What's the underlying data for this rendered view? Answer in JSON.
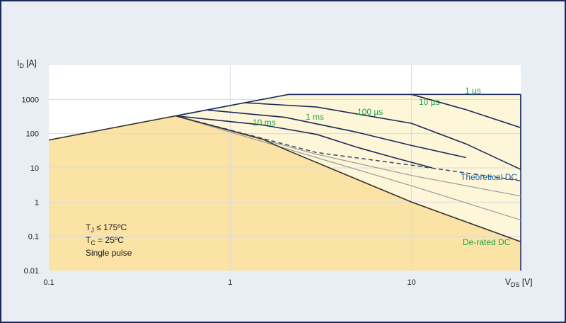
{
  "chart_data": {
    "type": "line",
    "title": "",
    "xlabel": {
      "main": "V",
      "sub": "DS",
      "unit": " [V]"
    },
    "ylabel": {
      "main": "I",
      "sub": "D",
      "unit": " [A]"
    },
    "x_scale": "log",
    "y_scale": "log",
    "xlim": [
      0.1,
      40
    ],
    "ylim": [
      0.01,
      10000
    ],
    "x_ticks": [
      0.1,
      1,
      10
    ],
    "y_ticks": [
      0.01,
      0.1,
      1,
      10,
      100,
      1000
    ],
    "x_tick_labels": [
      "0.1",
      "1",
      "10"
    ],
    "y_tick_labels": [
      "0.01",
      "0.1",
      "1",
      "10",
      "100",
      "1000"
    ],
    "grid": true,
    "series": [
      {
        "name": "1 µs",
        "label": "1 µs",
        "style": "solid",
        "color": "#1b2a5a",
        "points": [
          [
            0.5,
            330
          ],
          [
            2.1,
            1400
          ],
          [
            40,
            1400
          ],
          [
            40,
            9
          ]
        ]
      },
      {
        "name": "10 µs",
        "label": "10 µs",
        "style": "solid",
        "color": "#1b2a5a",
        "points": [
          [
            2.1,
            1400
          ],
          [
            10,
            1400
          ],
          [
            20,
            500
          ],
          [
            40,
            150
          ]
        ]
      },
      {
        "name": "100 µs",
        "label": "100 µs",
        "style": "solid",
        "color": "#1b2a5a",
        "points": [
          [
            1.2,
            800
          ],
          [
            3,
            600
          ],
          [
            10,
            200
          ],
          [
            20,
            50
          ],
          [
            40,
            9
          ]
        ]
      },
      {
        "name": "1 ms",
        "label": "1 ms",
        "style": "solid",
        "color": "#1b2a5a",
        "points": [
          [
            0.75,
            490
          ],
          [
            2,
            300
          ],
          [
            5,
            110
          ],
          [
            10,
            45
          ],
          [
            20,
            20
          ]
        ]
      },
      {
        "name": "10 ms",
        "label": "10 ms",
        "style": "solid",
        "color": "#1b2a5a",
        "points": [
          [
            0.5,
            330
          ],
          [
            1.5,
            180
          ],
          [
            3,
            95
          ],
          [
            5,
            40
          ],
          [
            8,
            20
          ],
          [
            13,
            10
          ]
        ]
      },
      {
        "name": "Theoretical DC",
        "label": "Theoretical DC",
        "style": "dashed",
        "color": "#44506e",
        "points": [
          [
            0.5,
            330
          ],
          [
            3,
            28
          ],
          [
            10,
            12
          ],
          [
            40,
            4.2
          ]
        ]
      },
      {
        "name": "gray-1",
        "style": "solid",
        "color": "#9a9a9a",
        "points": [
          [
            0.5,
            330
          ],
          [
            3,
            25
          ],
          [
            10,
            6
          ],
          [
            40,
            1.5
          ]
        ]
      },
      {
        "name": "gray-2",
        "style": "solid",
        "color": "#9a9a9a",
        "points": [
          [
            0.5,
            330
          ],
          [
            3,
            20
          ],
          [
            10,
            3
          ],
          [
            40,
            0.3
          ]
        ]
      },
      {
        "name": "De-rated DC",
        "label": "De-rated DC",
        "style": "solid",
        "color": "#333333",
        "points": [
          [
            0.1,
            65
          ],
          [
            0.5,
            330
          ],
          [
            1.5,
            70
          ],
          [
            2,
            35
          ],
          [
            10,
            1
          ],
          [
            40,
            0.07
          ]
        ]
      }
    ],
    "annotations": {
      "conditions": [
        "T_J ≤ 175ºC",
        "T_C = 25ºC",
        "Single pulse"
      ],
      "tj_text": {
        "main": "T",
        "sub": "J",
        "rest": " ≤ 175ºC"
      },
      "tc_text": {
        "main": "T",
        "sub": "C",
        "rest": " = 25ºC"
      },
      "pulse_text": "Single pulse"
    },
    "colors": {
      "background": "#e9eef5",
      "plot_area": "#ffffff",
      "safe_fill": "#fbe3a6",
      "pulse_fill": "#fdf6d8",
      "pulse_labels": "#1aa34a",
      "theoretical_label": "#1a63a8",
      "derated_label": "#1aa34a",
      "frame": "#1b2a5a"
    }
  }
}
